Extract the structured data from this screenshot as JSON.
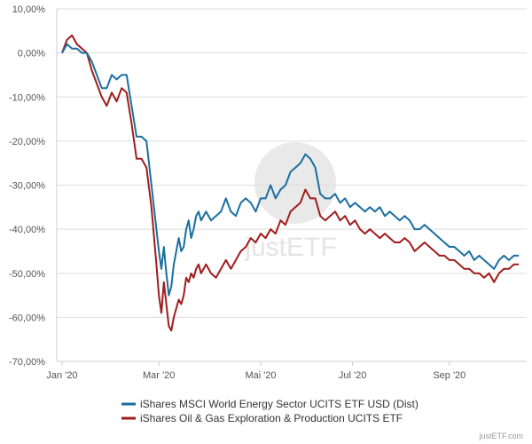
{
  "chart_data": {
    "type": "line",
    "title": "",
    "xlabel": "",
    "ylabel": "",
    "x_unit": "trading day index",
    "x_range": [
      0,
      185
    ],
    "ylim": [
      -70,
      10
    ],
    "y_ticks": [
      {
        "value": 10,
        "label": "10,00%"
      },
      {
        "value": 0,
        "label": "0,00%"
      },
      {
        "value": -10,
        "label": "-10,00%"
      },
      {
        "value": -20,
        "label": "-20,00%"
      },
      {
        "value": -30,
        "label": "-30,00%"
      },
      {
        "value": -40,
        "label": "-40,00%"
      },
      {
        "value": -50,
        "label": "-50,00%"
      },
      {
        "value": -60,
        "label": "-60,00%"
      },
      {
        "value": -70,
        "label": "-70,00%"
      }
    ],
    "x_ticks": [
      {
        "value": 0,
        "label": "Jan '20"
      },
      {
        "value": 39,
        "label": "Mar '20"
      },
      {
        "value": 80,
        "label": "Mai '20"
      },
      {
        "value": 117,
        "label": "Jul '20"
      },
      {
        "value": 156,
        "label": "Sep '20"
      }
    ],
    "grid": "horizontal",
    "legend_position": "bottom",
    "series": [
      {
        "name": "iShares MSCI World Energy Sector UCITS ETF USD (Dist)",
        "color": "#1a6fa0",
        "x": [
          0,
          2,
          4,
          6,
          8,
          10,
          12,
          14,
          16,
          18,
          20,
          22,
          24,
          26,
          28,
          30,
          32,
          34,
          36,
          38,
          39,
          40,
          41,
          42,
          43,
          44,
          45,
          46,
          47,
          48,
          49,
          50,
          51,
          52,
          53,
          54,
          55,
          56,
          58,
          60,
          62,
          64,
          66,
          68,
          70,
          72,
          74,
          76,
          78,
          80,
          82,
          84,
          86,
          88,
          90,
          92,
          94,
          96,
          98,
          100,
          102,
          104,
          106,
          108,
          110,
          112,
          114,
          116,
          118,
          120,
          122,
          124,
          126,
          128,
          130,
          132,
          134,
          136,
          138,
          140,
          142,
          144,
          146,
          148,
          150,
          152,
          154,
          156,
          158,
          160,
          162,
          164,
          166,
          168,
          170,
          172,
          174,
          176,
          178,
          180,
          182,
          184
        ],
        "y": [
          0,
          2,
          1,
          1,
          0,
          0,
          -2,
          -5,
          -8,
          -8,
          -5,
          -6,
          -5,
          -5,
          -12,
          -19,
          -19,
          -20,
          -30,
          -40,
          -45,
          -49,
          -44,
          -50,
          -55,
          -53,
          -48,
          -45,
          -42,
          -45,
          -44,
          -40,
          -38,
          -42,
          -40,
          -37,
          -36,
          -38,
          -36,
          -38,
          -37,
          -36,
          -33,
          -36,
          -37,
          -34,
          -33,
          -34,
          -36,
          -33,
          -33,
          -30,
          -33,
          -31,
          -30,
          -27,
          -26,
          -25,
          -23,
          -24,
          -26,
          -32,
          -33,
          -33,
          -32,
          -34,
          -33,
          -35,
          -34,
          -35,
          -36,
          -35,
          -36,
          -35,
          -37,
          -36,
          -37,
          -38,
          -37,
          -38,
          -40,
          -40,
          -39,
          -40,
          -41,
          -42,
          -43,
          -44,
          -44,
          -45,
          -46,
          -45,
          -47,
          -46,
          -47,
          -48,
          -49,
          -47,
          -46,
          -47,
          -46,
          -46
        ]
      },
      {
        "name": "iShares Oil & Gas Exploration & Production UCITS ETF",
        "color": "#a01c1c",
        "x": [
          0,
          2,
          4,
          6,
          8,
          10,
          12,
          14,
          16,
          18,
          20,
          22,
          24,
          26,
          28,
          30,
          32,
          34,
          36,
          38,
          39,
          40,
          41,
          42,
          43,
          44,
          45,
          46,
          47,
          48,
          49,
          50,
          51,
          52,
          53,
          54,
          55,
          56,
          58,
          60,
          62,
          64,
          66,
          68,
          70,
          72,
          74,
          76,
          78,
          80,
          82,
          84,
          86,
          88,
          90,
          92,
          94,
          96,
          98,
          100,
          102,
          104,
          106,
          108,
          110,
          112,
          114,
          116,
          118,
          120,
          122,
          124,
          126,
          128,
          130,
          132,
          134,
          136,
          138,
          140,
          142,
          144,
          146,
          148,
          150,
          152,
          154,
          156,
          158,
          160,
          162,
          164,
          166,
          168,
          170,
          172,
          174,
          176,
          178,
          180,
          182,
          184
        ],
        "y": [
          0,
          3,
          4,
          2,
          1,
          0,
          -4,
          -7,
          -10,
          -12,
          -9,
          -11,
          -8,
          -9,
          -16,
          -24,
          -24,
          -26,
          -35,
          -48,
          -55,
          -59,
          -52,
          -57,
          -62,
          -63,
          -60,
          -58,
          -56,
          -57,
          -55,
          -51,
          -52,
          -50,
          -51,
          -49,
          -48,
          -50,
          -48,
          -50,
          -51,
          -49,
          -47,
          -49,
          -47,
          -45,
          -44,
          -42,
          -43,
          -41,
          -42,
          -40,
          -41,
          -38,
          -39,
          -36,
          -35,
          -34,
          -31,
          -33,
          -33,
          -37,
          -38,
          -37,
          -36,
          -38,
          -37,
          -39,
          -38,
          -40,
          -41,
          -40,
          -41,
          -42,
          -41,
          -42,
          -43,
          -43,
          -42,
          -43,
          -45,
          -44,
          -43,
          -44,
          -45,
          -46,
          -46,
          -47,
          -47,
          -48,
          -49,
          -49,
          -50,
          -50,
          -51,
          -50,
          -52,
          -50,
          -49,
          -49,
          -48,
          -48
        ]
      }
    ]
  },
  "watermark": "justETF",
  "credit": "justETF.com"
}
